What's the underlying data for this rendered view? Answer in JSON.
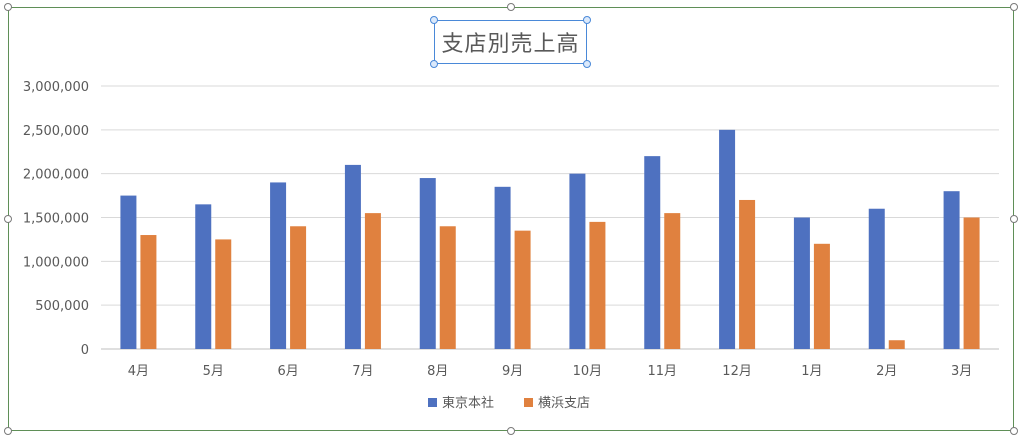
{
  "chart_data": {
    "type": "bar",
    "title": "支店別売上高",
    "categories": [
      "4月",
      "5月",
      "6月",
      "7月",
      "8月",
      "9月",
      "10月",
      "11月",
      "12月",
      "1月",
      "2月",
      "3月"
    ],
    "series": [
      {
        "name": "東京本社",
        "color": "#4e71c0",
        "values": [
          1750000,
          1650000,
          1900000,
          2100000,
          1950000,
          1850000,
          2000000,
          2200000,
          2500000,
          1500000,
          1600000,
          1800000
        ]
      },
      {
        "name": "横浜支店",
        "color": "#e0813f",
        "values": [
          1300000,
          1250000,
          1400000,
          1550000,
          1400000,
          1350000,
          1450000,
          1550000,
          1700000,
          1200000,
          100000,
          1500000
        ]
      }
    ],
    "ylim": [
      0,
      3000000
    ],
    "yticks": [
      "0",
      "500,000",
      "1,000,000",
      "1,500,000",
      "2,000,000",
      "2,500,000",
      "3,000,000"
    ],
    "grid": true,
    "legend": "bottom"
  }
}
